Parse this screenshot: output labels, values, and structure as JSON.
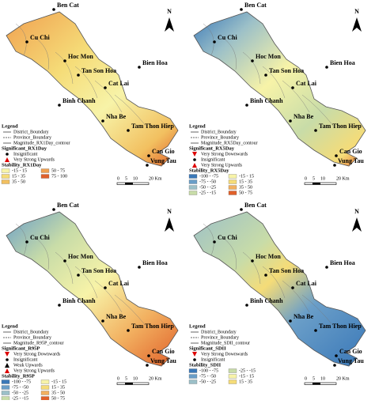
{
  "panels": [
    {
      "places": [
        "Ben Cat",
        "Cu Chi",
        "Hoc Mon",
        "Tan Son Hoa",
        "Bien Hoa",
        "Cat Lai",
        "Binh Chanh",
        "Nha Be",
        "Tam Thon Hiep",
        "Can Gio",
        "Vung Tau"
      ],
      "north": "N",
      "legend": {
        "title": "Legend",
        "items": [
          "District_Boundary",
          "Province_Boundary",
          "Magnitude_RX1Day_contour"
        ],
        "significant_title": "Significant_RX1Day",
        "significant_items": [
          "Insignificant",
          "Very Strong Upwards"
        ],
        "stability_title": "Stability_RX1Day",
        "stability_items": [
          {
            "label": "-15 - 15",
            "color": "#f7f3a8"
          },
          {
            "label": "50 - 75",
            "color": "#f0a050"
          },
          {
            "label": "15 - 35",
            "color": "#f5dc78"
          },
          {
            "label": "75 - 100",
            "color": "#e0602a"
          },
          {
            "label": "35 - 50",
            "color": "#f2c060"
          }
        ]
      },
      "scale": [
        "0",
        "5",
        "10",
        "20 Km"
      ]
    },
    {
      "places": [
        "Ben Cat",
        "Cu Chi",
        "Hoc Mon",
        "Tan Son Hoa",
        "Bien Hoa",
        "Cat Lai",
        "Binh Chanh",
        "Nha Be",
        "Tam Thon Hiep",
        "Can Gio",
        "Vung Tau"
      ],
      "north": "N",
      "legend": {
        "title": "Legend",
        "items": [
          "District_Boundary",
          "Province_Boundary",
          "Magnitude_RX5Day_contour"
        ],
        "significant_title": "Significant_RX5Day",
        "significant_items": [
          "Very Strong Downwards",
          "Insignificant",
          "Very Strong Upwards"
        ],
        "stability_title": "Stability_RX5Day",
        "stability_items": [
          {
            "label": "-100 - -75",
            "color": "#3a78b8"
          },
          {
            "label": "-15 - 15",
            "color": "#f7f3a8"
          },
          {
            "label": "-75 - -50",
            "color": "#6a9ec8"
          },
          {
            "label": "15 - 35",
            "color": "#f5dc78"
          },
          {
            "label": "-50 - -25",
            "color": "#9cc0c8"
          },
          {
            "label": "35 - 50",
            "color": "#f2b060"
          },
          {
            "label": "-25 - -15",
            "color": "#c8dca8"
          },
          {
            "label": "50 - 75",
            "color": "#e0602a"
          }
        ]
      },
      "scale": [
        "0",
        "5",
        "10",
        "20 Km"
      ]
    },
    {
      "places": [
        "Ben Cat",
        "Cu Chi",
        "Hoc Mon",
        "Tan Son Hoa",
        "Bien Hoa",
        "Cat Lai",
        "Binh Chanh",
        "Nha Be",
        "Tam Thon Hiep",
        "Can Gio",
        "Vung Tau"
      ],
      "north": "N",
      "legend": {
        "title": "Legend",
        "items": [
          "District_Boundary",
          "Province_Boundary",
          "Magnitude_R95P_contour"
        ],
        "significant_title": "Significant_R95P",
        "significant_items": [
          "Very Strong Downwards",
          "Insignificant",
          "Weak Upwards",
          "Very Strong Upwards"
        ],
        "stability_title": "Stability_R95P",
        "stability_items": [
          {
            "label": "-100 - -75",
            "color": "#3a78b8"
          },
          {
            "label": "-15 - 15",
            "color": "#f7f3a8"
          },
          {
            "label": "-75 - -50",
            "color": "#6a9ec8"
          },
          {
            "label": "15 - 35",
            "color": "#f5dc78"
          },
          {
            "label": "-50 - -25",
            "color": "#9cc0c8"
          },
          {
            "label": "35 - 50",
            "color": "#f2b060"
          },
          {
            "label": "-25 - -15",
            "color": "#c8dca8"
          },
          {
            "label": "50 - 75",
            "color": "#e0602a"
          }
        ]
      },
      "scale": [
        "0",
        "5",
        "10",
        "20 Km"
      ]
    },
    {
      "places": [
        "Ben Cat",
        "Cu Chi",
        "Hoc Mon",
        "Tan Son Hoa",
        "Bien Hoa",
        "Cat Lai",
        "Binh Chanh",
        "Nha Be",
        "Tam Thon Hiep",
        "Can Gio",
        "Vung Tau"
      ],
      "north": "N",
      "legend": {
        "title": "Legend",
        "items": [
          "District_Boundary",
          "Province_Boundary",
          "Magnitude_SDII_contour"
        ],
        "significant_title": "Significant_SDII",
        "significant_items": [
          "Very Strong Downwards",
          "Insignificant"
        ],
        "stability_title": "Stability_SDII",
        "stability_items": [
          {
            "label": "-100 - -75",
            "color": "#3a78b8"
          },
          {
            "label": "-25 - -15",
            "color": "#c8dca8"
          },
          {
            "label": "-75 - -50",
            "color": "#6a9ec8"
          },
          {
            "label": "-15 - 15",
            "color": "#f7f3a8"
          },
          {
            "label": "-50 - -25",
            "color": "#9cc0c8"
          },
          {
            "label": "15 - 35",
            "color": "#f5dc78"
          }
        ]
      },
      "scale": [
        "0",
        "5",
        "10",
        "20 Km"
      ]
    }
  ]
}
